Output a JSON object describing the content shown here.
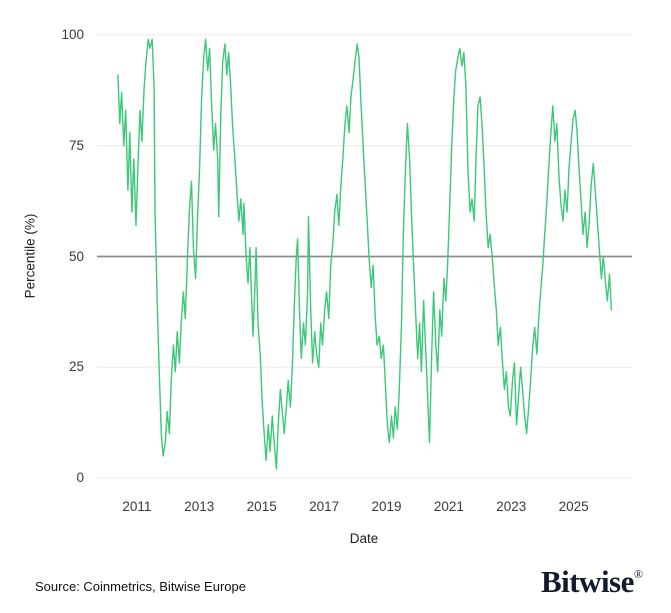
{
  "footer": {
    "source": "Source: Coinmetrics, Bitwise Europe",
    "brand": "Bitwise",
    "brand_mark": "®"
  },
  "colors": {
    "line": "#3cc878",
    "reference_line": "#8c8c8c",
    "grid": "#e8e8e8",
    "tick_text": "#3a3a3a",
    "brand_navy": "#131a2e"
  },
  "chart_data": {
    "type": "line",
    "title": "",
    "xlabel": "Date",
    "ylabel": "Percentile (%)",
    "legend": "none",
    "grid": "horizontal-only",
    "xlim": [
      2009.72,
      2026.87
    ],
    "ylim": [
      0,
      100
    ],
    "x_ticks": [
      2011,
      2013,
      2015,
      2017,
      2019,
      2021,
      2023,
      2025
    ],
    "y_ticks": [
      0,
      25,
      50,
      75,
      100
    ],
    "reference_line_y": 50,
    "series": [
      {
        "name": "Percentile (%)",
        "points": [
          [
            2010.39,
            91
          ],
          [
            2010.45,
            80
          ],
          [
            2010.51,
            87
          ],
          [
            2010.58,
            75
          ],
          [
            2010.64,
            83
          ],
          [
            2010.71,
            65
          ],
          [
            2010.77,
            78
          ],
          [
            2010.84,
            60
          ],
          [
            2010.9,
            72
          ],
          [
            2010.97,
            57
          ],
          [
            2011.03,
            70
          ],
          [
            2011.1,
            83
          ],
          [
            2011.16,
            76
          ],
          [
            2011.23,
            88
          ],
          [
            2011.29,
            94
          ],
          [
            2011.36,
            99
          ],
          [
            2011.42,
            97
          ],
          [
            2011.49,
            99
          ],
          [
            2011.55,
            88
          ],
          [
            2011.58,
            60
          ],
          [
            2011.65,
            40
          ],
          [
            2011.71,
            25
          ],
          [
            2011.78,
            10
          ],
          [
            2011.84,
            5
          ],
          [
            2011.91,
            8
          ],
          [
            2011.97,
            15
          ],
          [
            2012.04,
            10
          ],
          [
            2012.1,
            22
          ],
          [
            2012.17,
            30
          ],
          [
            2012.23,
            24
          ],
          [
            2012.29,
            33
          ],
          [
            2012.36,
            26
          ],
          [
            2012.42,
            35
          ],
          [
            2012.49,
            42
          ],
          [
            2012.55,
            36
          ],
          [
            2012.62,
            50
          ],
          [
            2012.68,
            60
          ],
          [
            2012.75,
            67
          ],
          [
            2012.81,
            52
          ],
          [
            2012.88,
            45
          ],
          [
            2012.94,
            58
          ],
          [
            2013.01,
            70
          ],
          [
            2013.07,
            85
          ],
          [
            2013.14,
            95
          ],
          [
            2013.2,
            99
          ],
          [
            2013.27,
            92
          ],
          [
            2013.33,
            97
          ],
          [
            2013.39,
            85
          ],
          [
            2013.46,
            74
          ],
          [
            2013.52,
            80
          ],
          [
            2013.59,
            72
          ],
          [
            2013.62,
            59
          ],
          [
            2013.69,
            82
          ],
          [
            2013.75,
            94
          ],
          [
            2013.82,
            98
          ],
          [
            2013.88,
            91
          ],
          [
            2013.94,
            96
          ],
          [
            2014.01,
            88
          ],
          [
            2014.07,
            79
          ],
          [
            2014.14,
            72
          ],
          [
            2014.2,
            65
          ],
          [
            2014.27,
            58
          ],
          [
            2014.33,
            63
          ],
          [
            2014.4,
            55
          ],
          [
            2014.43,
            62
          ],
          [
            2014.5,
            50
          ],
          [
            2014.56,
            44
          ],
          [
            2014.62,
            52
          ],
          [
            2014.69,
            38
          ],
          [
            2014.72,
            32
          ],
          [
            2014.79,
            45
          ],
          [
            2014.82,
            52
          ],
          [
            2014.88,
            35
          ],
          [
            2014.95,
            28
          ],
          [
            2015.01,
            18
          ],
          [
            2015.08,
            10
          ],
          [
            2015.14,
            4
          ],
          [
            2015.21,
            12
          ],
          [
            2015.27,
            6
          ],
          [
            2015.34,
            14
          ],
          [
            2015.4,
            8
          ],
          [
            2015.47,
            2
          ],
          [
            2015.53,
            12
          ],
          [
            2015.6,
            20
          ],
          [
            2015.66,
            15
          ],
          [
            2015.72,
            10
          ],
          [
            2015.79,
            16
          ],
          [
            2015.85,
            22
          ],
          [
            2015.92,
            16
          ],
          [
            2015.98,
            25
          ],
          [
            2016.05,
            40
          ],
          [
            2016.11,
            50
          ],
          [
            2016.15,
            54
          ],
          [
            2016.21,
            38
          ],
          [
            2016.27,
            27
          ],
          [
            2016.34,
            35
          ],
          [
            2016.4,
            30
          ],
          [
            2016.47,
            42
          ],
          [
            2016.5,
            59
          ],
          [
            2016.57,
            38
          ],
          [
            2016.63,
            26
          ],
          [
            2016.7,
            33
          ],
          [
            2016.76,
            28
          ],
          [
            2016.83,
            25
          ],
          [
            2016.89,
            35
          ],
          [
            2016.95,
            30
          ],
          [
            2017.02,
            38
          ],
          [
            2017.08,
            42
          ],
          [
            2017.15,
            36
          ],
          [
            2017.21,
            48
          ],
          [
            2017.28,
            53
          ],
          [
            2017.34,
            60
          ],
          [
            2017.41,
            64
          ],
          [
            2017.47,
            57
          ],
          [
            2017.54,
            66
          ],
          [
            2017.6,
            72
          ],
          [
            2017.67,
            80
          ],
          [
            2017.73,
            84
          ],
          [
            2017.8,
            78
          ],
          [
            2017.86,
            86
          ],
          [
            2017.93,
            90
          ],
          [
            2017.99,
            94
          ],
          [
            2018.06,
            98
          ],
          [
            2018.12,
            95
          ],
          [
            2018.18,
            85
          ],
          [
            2018.25,
            75
          ],
          [
            2018.31,
            67
          ],
          [
            2018.38,
            58
          ],
          [
            2018.44,
            50
          ],
          [
            2018.51,
            43
          ],
          [
            2018.57,
            48
          ],
          [
            2018.64,
            36
          ],
          [
            2018.7,
            30
          ],
          [
            2018.77,
            32
          ],
          [
            2018.83,
            27
          ],
          [
            2018.9,
            30
          ],
          [
            2018.96,
            22
          ],
          [
            2019.03,
            12
          ],
          [
            2019.09,
            8
          ],
          [
            2019.16,
            14
          ],
          [
            2019.22,
            9
          ],
          [
            2019.28,
            16
          ],
          [
            2019.35,
            11
          ],
          [
            2019.41,
            20
          ],
          [
            2019.48,
            35
          ],
          [
            2019.54,
            55
          ],
          [
            2019.61,
            70
          ],
          [
            2019.67,
            80
          ],
          [
            2019.74,
            72
          ],
          [
            2019.8,
            60
          ],
          [
            2019.87,
            48
          ],
          [
            2019.93,
            38
          ],
          [
            2020.0,
            27
          ],
          [
            2020.06,
            35
          ],
          [
            2020.12,
            24
          ],
          [
            2020.19,
            40
          ],
          [
            2020.25,
            30
          ],
          [
            2020.32,
            18
          ],
          [
            2020.38,
            8
          ],
          [
            2020.45,
            28
          ],
          [
            2020.51,
            42
          ],
          [
            2020.58,
            30
          ],
          [
            2020.64,
            24
          ],
          [
            2020.71,
            38
          ],
          [
            2020.77,
            32
          ],
          [
            2020.84,
            45
          ],
          [
            2020.9,
            40
          ],
          [
            2020.96,
            48
          ],
          [
            2021.03,
            62
          ],
          [
            2021.09,
            75
          ],
          [
            2021.16,
            86
          ],
          [
            2021.22,
            92
          ],
          [
            2021.29,
            95
          ],
          [
            2021.35,
            97
          ],
          [
            2021.42,
            93
          ],
          [
            2021.48,
            96
          ],
          [
            2021.55,
            88
          ],
          [
            2021.61,
            70
          ],
          [
            2021.68,
            60
          ],
          [
            2021.74,
            63
          ],
          [
            2021.81,
            58
          ],
          [
            2021.87,
            72
          ],
          [
            2021.93,
            84
          ],
          [
            2022.0,
            86
          ],
          [
            2022.06,
            80
          ],
          [
            2022.13,
            70
          ],
          [
            2022.19,
            60
          ],
          [
            2022.26,
            52
          ],
          [
            2022.32,
            55
          ],
          [
            2022.39,
            50
          ],
          [
            2022.45,
            44
          ],
          [
            2022.52,
            38
          ],
          [
            2022.58,
            30
          ],
          [
            2022.65,
            34
          ],
          [
            2022.71,
            27
          ],
          [
            2022.78,
            20
          ],
          [
            2022.84,
            24
          ],
          [
            2022.91,
            16
          ],
          [
            2022.97,
            14
          ],
          [
            2023.04,
            22
          ],
          [
            2023.1,
            26
          ],
          [
            2023.17,
            12
          ],
          [
            2023.23,
            18
          ],
          [
            2023.3,
            25
          ],
          [
            2023.36,
            20
          ],
          [
            2023.43,
            14
          ],
          [
            2023.49,
            10
          ],
          [
            2023.56,
            16
          ],
          [
            2023.62,
            22
          ],
          [
            2023.69,
            30
          ],
          [
            2023.75,
            34
          ],
          [
            2023.82,
            28
          ],
          [
            2023.88,
            36
          ],
          [
            2023.94,
            42
          ],
          [
            2024.01,
            48
          ],
          [
            2024.07,
            55
          ],
          [
            2024.14,
            62
          ],
          [
            2024.2,
            70
          ],
          [
            2024.27,
            78
          ],
          [
            2024.33,
            84
          ],
          [
            2024.4,
            76
          ],
          [
            2024.46,
            80
          ],
          [
            2024.53,
            68
          ],
          [
            2024.59,
            62
          ],
          [
            2024.66,
            58
          ],
          [
            2024.72,
            65
          ],
          [
            2024.79,
            60
          ],
          [
            2024.85,
            70
          ],
          [
            2024.92,
            76
          ],
          [
            2024.98,
            81
          ],
          [
            2025.05,
            83
          ],
          [
            2025.11,
            78
          ],
          [
            2025.17,
            70
          ],
          [
            2025.24,
            62
          ],
          [
            2025.3,
            55
          ],
          [
            2025.37,
            60
          ],
          [
            2025.43,
            52
          ],
          [
            2025.5,
            58
          ],
          [
            2025.56,
            66
          ],
          [
            2025.63,
            71
          ],
          [
            2025.69,
            65
          ],
          [
            2025.76,
            58
          ],
          [
            2025.82,
            52
          ],
          [
            2025.89,
            45
          ],
          [
            2025.95,
            50
          ],
          [
            2026.02,
            44
          ],
          [
            2026.08,
            40
          ],
          [
            2026.15,
            46
          ],
          [
            2026.21,
            38
          ]
        ]
      }
    ]
  }
}
